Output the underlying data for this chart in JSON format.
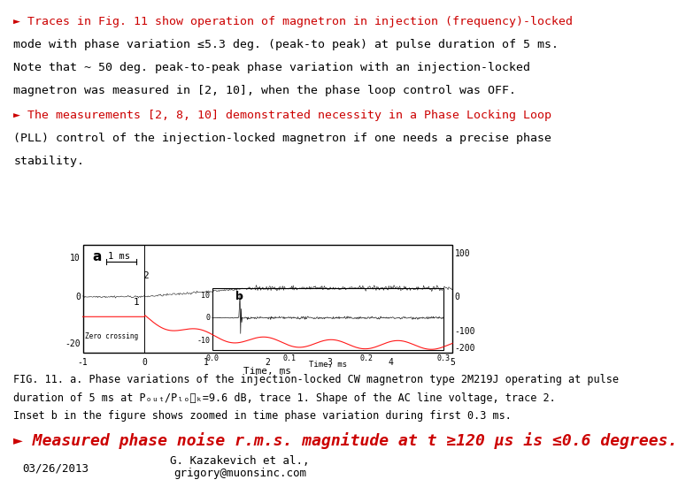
{
  "bg_color": "#ffffff",
  "bullet_color": "#cc0000",
  "text_color": "#000000",
  "bullet1_lines": [
    "► Traces in Fig. 11 show operation of magnetron in injection (frequency)-locked",
    "mode with phase variation ≤5.3 deg. (peak-to peak) at pulse duration of 5 ms.",
    "Note that ~ 50 deg. peak-to-peak phase variation with an injection-locked",
    "magnetron was measured in [2, 10], when the phase loop control was OFF."
  ],
  "bullet2_lines": [
    "► The measurements [2, 8, 10] demonstrated necessity in a Phase Locking Loop",
    "(PLL) control of the injection-locked magnetron if one needs a precise phase",
    "stability."
  ],
  "fig_caption_lines": [
    "FIG. 11. a. Phase variations of the injection-locked CW magnetron type 2M219J operating at pulse",
    "duration of 5 ms at Pₒᵤₜ/Pₗₒ⁣ₖ=9.6 dB, trace 1. Shape of the AC line voltage, trace 2.",
    "Inset b in the figure shows zoomed in time phase variation during first 0.3 ms."
  ],
  "bullet3_line": "► Measured phase noise r.m.s. magnitude at t ≥120 μs is ≤0.6 degrees.",
  "footer_left": "03/26/2013",
  "footer_center_line1": "G. Kazakevich et al.,",
  "footer_center_line2": "grigory@muonsinc.com",
  "font_family": "monospace",
  "main_font_size": 9.5,
  "bullet3_font_size": 13,
  "caption_font_size": 8.5,
  "footer_font_size": 9
}
